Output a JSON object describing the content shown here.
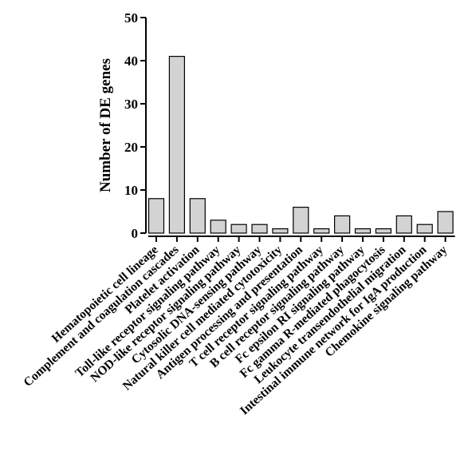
{
  "chart_data": {
    "type": "bar",
    "ylabel": "Number of DE genes",
    "xlabel": "",
    "title": "",
    "ylim": [
      0,
      50
    ],
    "yticks": [
      0,
      10,
      20,
      30,
      40,
      50
    ],
    "grid": false,
    "legend": "none",
    "bar_color": "#d3d3d3",
    "bar_edge_color": "#000000",
    "categories": [
      "Hematopoietic cell lineage",
      "Complement and coagulation cascades",
      "Platelet activation",
      "Toll-like receptor signaling pathway",
      "NOD-like receptor signaling pathway",
      "Cytosolic DNA-sensing pathway",
      "Natural killer cell mediated cytotoxicity",
      "Antigen processing and presentation",
      "T cell receptor signaling pathway",
      "B cell receptor signaling pathway",
      "Fc epsilon RI signaling pathway",
      "Fc gamma R-mediated phagocytosis",
      "Leukocyte transendothelial migration",
      "Intestinal immune network for IgA production",
      "Chemokine signaling pathway"
    ],
    "values": [
      8,
      41,
      8,
      3,
      2,
      2,
      1,
      6,
      1,
      4,
      1,
      1,
      4,
      2,
      5
    ]
  }
}
